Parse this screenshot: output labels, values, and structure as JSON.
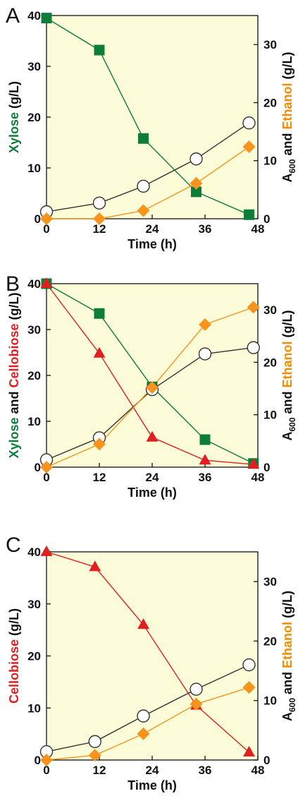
{
  "chart_data": [
    {
      "panel": "A",
      "type": "line",
      "xlabel": "Time (h)",
      "ylabel_left": [
        {
          "text": "Xylose",
          "color": "#0f7d3a"
        },
        {
          "text": " (g/L)",
          "color": "#111111"
        }
      ],
      "ylabel_right": [
        {
          "text": "A",
          "color": "#111111"
        },
        {
          "text": "600",
          "color": "#111111",
          "sub": true
        },
        {
          "text": " and ",
          "color": "#111111"
        },
        {
          "text": "Ethanol",
          "color": "#f28c00"
        },
        {
          "text": " (g/L)",
          "color": "#111111"
        }
      ],
      "xlim": [
        0,
        48
      ],
      "xticks": [
        0,
        12,
        24,
        36,
        48
      ],
      "ylim_left": [
        0,
        40
      ],
      "yticks_left": [
        0,
        10,
        20,
        30,
        40
      ],
      "ylim_right": [
        0,
        35
      ],
      "yticks_right": [
        0,
        10,
        20,
        30
      ],
      "series": [
        {
          "axis": "left",
          "marker": "square",
          "color": "#0f7d3a",
          "x": [
            0,
            12,
            22,
            34,
            46
          ],
          "y": [
            39.5,
            33.2,
            15.8,
            5.3,
            0.8
          ]
        },
        {
          "axis": "right",
          "marker": "circle",
          "color": "#333333",
          "x": [
            0,
            12,
            22,
            34,
            46
          ],
          "y": [
            1.2,
            2.7,
            5.6,
            10.3,
            16.5
          ]
        },
        {
          "axis": "right",
          "marker": "diamond",
          "color": "#f7941d",
          "x": [
            0,
            12,
            22,
            34,
            46
          ],
          "y": [
            0,
            0,
            1.4,
            6.1,
            12.4
          ]
        }
      ]
    },
    {
      "panel": "B",
      "type": "line",
      "xlabel": "Time (h)",
      "ylabel_left": [
        {
          "text": "Xylose",
          "color": "#0f7d3a"
        },
        {
          "text": " and ",
          "color": "#111111"
        },
        {
          "text": "Cellobiose",
          "color": "#e02020"
        },
        {
          "text": " (g/L)",
          "color": "#111111"
        }
      ],
      "ylabel_right": [
        {
          "text": "A",
          "color": "#111111"
        },
        {
          "text": "600",
          "color": "#111111",
          "sub": true
        },
        {
          "text": " and ",
          "color": "#111111"
        },
        {
          "text": "Ethanol",
          "color": "#f28c00"
        },
        {
          "text": " (g/L)",
          "color": "#111111"
        }
      ],
      "xlim": [
        0,
        48
      ],
      "xticks": [
        0,
        12,
        24,
        36,
        48
      ],
      "ylim_left": [
        0,
        40
      ],
      "yticks_left": [
        0,
        10,
        20,
        30,
        40
      ],
      "ylim_right": [
        0,
        35
      ],
      "yticks_right": [
        0,
        10,
        20,
        30
      ],
      "series": [
        {
          "axis": "left",
          "marker": "square",
          "color": "#0f7d3a",
          "x": [
            0,
            12,
            24,
            36,
            47
          ],
          "y": [
            40,
            33.5,
            17.5,
            6,
            0.8
          ]
        },
        {
          "axis": "left",
          "marker": "triangle",
          "color": "#e02020",
          "x": [
            0,
            12,
            24,
            36,
            47
          ],
          "y": [
            40,
            24.8,
            6.5,
            1.5,
            0.6
          ]
        },
        {
          "axis": "right",
          "marker": "circle",
          "color": "#333333",
          "x": [
            0,
            12,
            24,
            36,
            47
          ],
          "y": [
            1.4,
            5.6,
            14.8,
            21.6,
            22.8
          ]
        },
        {
          "axis": "right",
          "marker": "diamond",
          "color": "#f7941d",
          "x": [
            0,
            12,
            24,
            36,
            47
          ],
          "y": [
            0,
            4.4,
            15.2,
            27.2,
            30.5
          ]
        }
      ]
    },
    {
      "panel": "C",
      "type": "line",
      "xlabel": "Time (h)",
      "ylabel_left": [
        {
          "text": "Cellobiose",
          "color": "#e02020"
        },
        {
          "text": " (g/L)",
          "color": "#111111"
        }
      ],
      "ylabel_right": [
        {
          "text": "A",
          "color": "#111111"
        },
        {
          "text": "600",
          "color": "#111111",
          "sub": true
        },
        {
          "text": " and ",
          "color": "#111111"
        },
        {
          "text": "Ethanol",
          "color": "#f28c00"
        },
        {
          "text": " (g/L)",
          "color": "#111111"
        }
      ],
      "xlim": [
        0,
        48
      ],
      "xticks": [
        0,
        12,
        24,
        36,
        48
      ],
      "ylim_left": [
        0,
        40
      ],
      "yticks_left": [
        0,
        10,
        20,
        30,
        40
      ],
      "ylim_right": [
        0,
        35
      ],
      "yticks_right": [
        0,
        10,
        20,
        30
      ],
      "series": [
        {
          "axis": "left",
          "marker": "triangle",
          "color": "#e02020",
          "x": [
            0,
            11,
            22,
            34,
            46
          ],
          "y": [
            40,
            37.1,
            26,
            10.5,
            1.5
          ]
        },
        {
          "axis": "right",
          "marker": "circle",
          "color": "#333333",
          "x": [
            0,
            11,
            22,
            34,
            46
          ],
          "y": [
            1.4,
            3.1,
            7.4,
            11.9,
            16.0
          ]
        },
        {
          "axis": "right",
          "marker": "diamond",
          "color": "#f7941d",
          "x": [
            0,
            11,
            22,
            34,
            46
          ],
          "y": [
            0,
            0.8,
            4.4,
            9.4,
            12.2
          ]
        }
      ]
    }
  ]
}
